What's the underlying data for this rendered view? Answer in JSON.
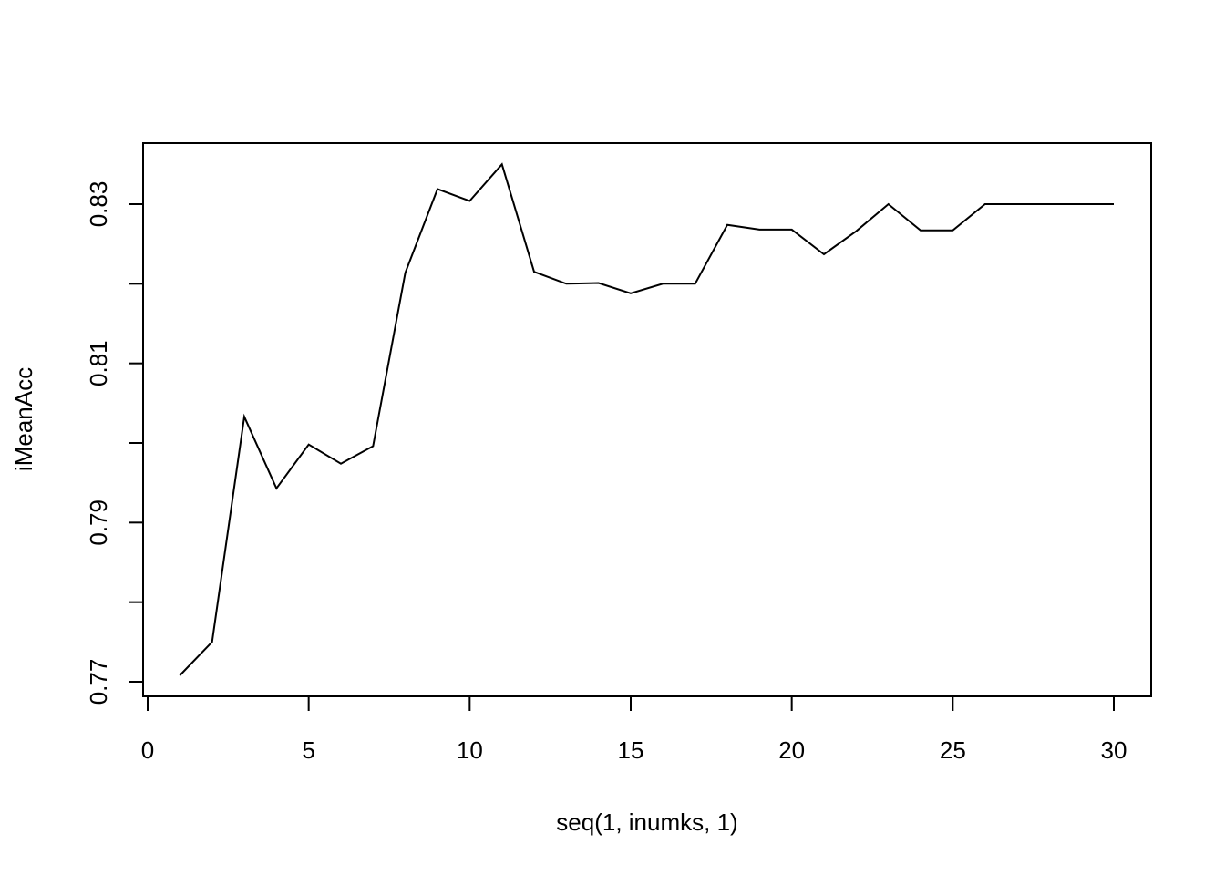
{
  "chart_data": {
    "type": "line",
    "title": "",
    "xlabel": "seq(1, inumks, 1)",
    "ylabel": "iMeanAcc",
    "xlim": [
      0,
      30
    ],
    "ylim": [
      0.77,
      0.8375
    ],
    "xticks": [
      0,
      5,
      10,
      15,
      20,
      25,
      30
    ],
    "xtick_labels": [
      "0",
      "5",
      "10",
      "15",
      "20",
      "25",
      "30"
    ],
    "yticks": [
      0.77,
      0.78,
      0.79,
      0.8,
      0.81,
      0.82,
      0.83
    ],
    "ytick_labels": [
      "0.77",
      "",
      "0.79",
      "",
      "0.81",
      "",
      "0.83"
    ],
    "grid": false,
    "legend": "none",
    "series": [
      {
        "x": [
          1,
          2,
          3,
          4,
          5,
          6,
          7,
          8,
          9,
          10,
          11,
          12,
          13,
          14,
          15,
          16,
          17,
          18,
          19,
          20,
          21,
          22,
          23,
          24,
          25,
          26,
          27,
          28,
          29,
          30
        ],
        "y": [
          0.7708,
          0.775,
          0.8033,
          0.7943,
          0.7998,
          0.7974,
          0.7996,
          0.8214,
          0.8319,
          0.8304,
          0.835,
          0.8215,
          0.82,
          0.8201,
          0.8188,
          0.82,
          0.82,
          0.8274,
          0.8268,
          0.8268,
          0.8237,
          0.8266,
          0.83,
          0.8267,
          0.8267,
          0.83,
          0.83,
          0.83,
          0.83,
          0.83
        ]
      }
    ],
    "line_color": "#000000"
  }
}
